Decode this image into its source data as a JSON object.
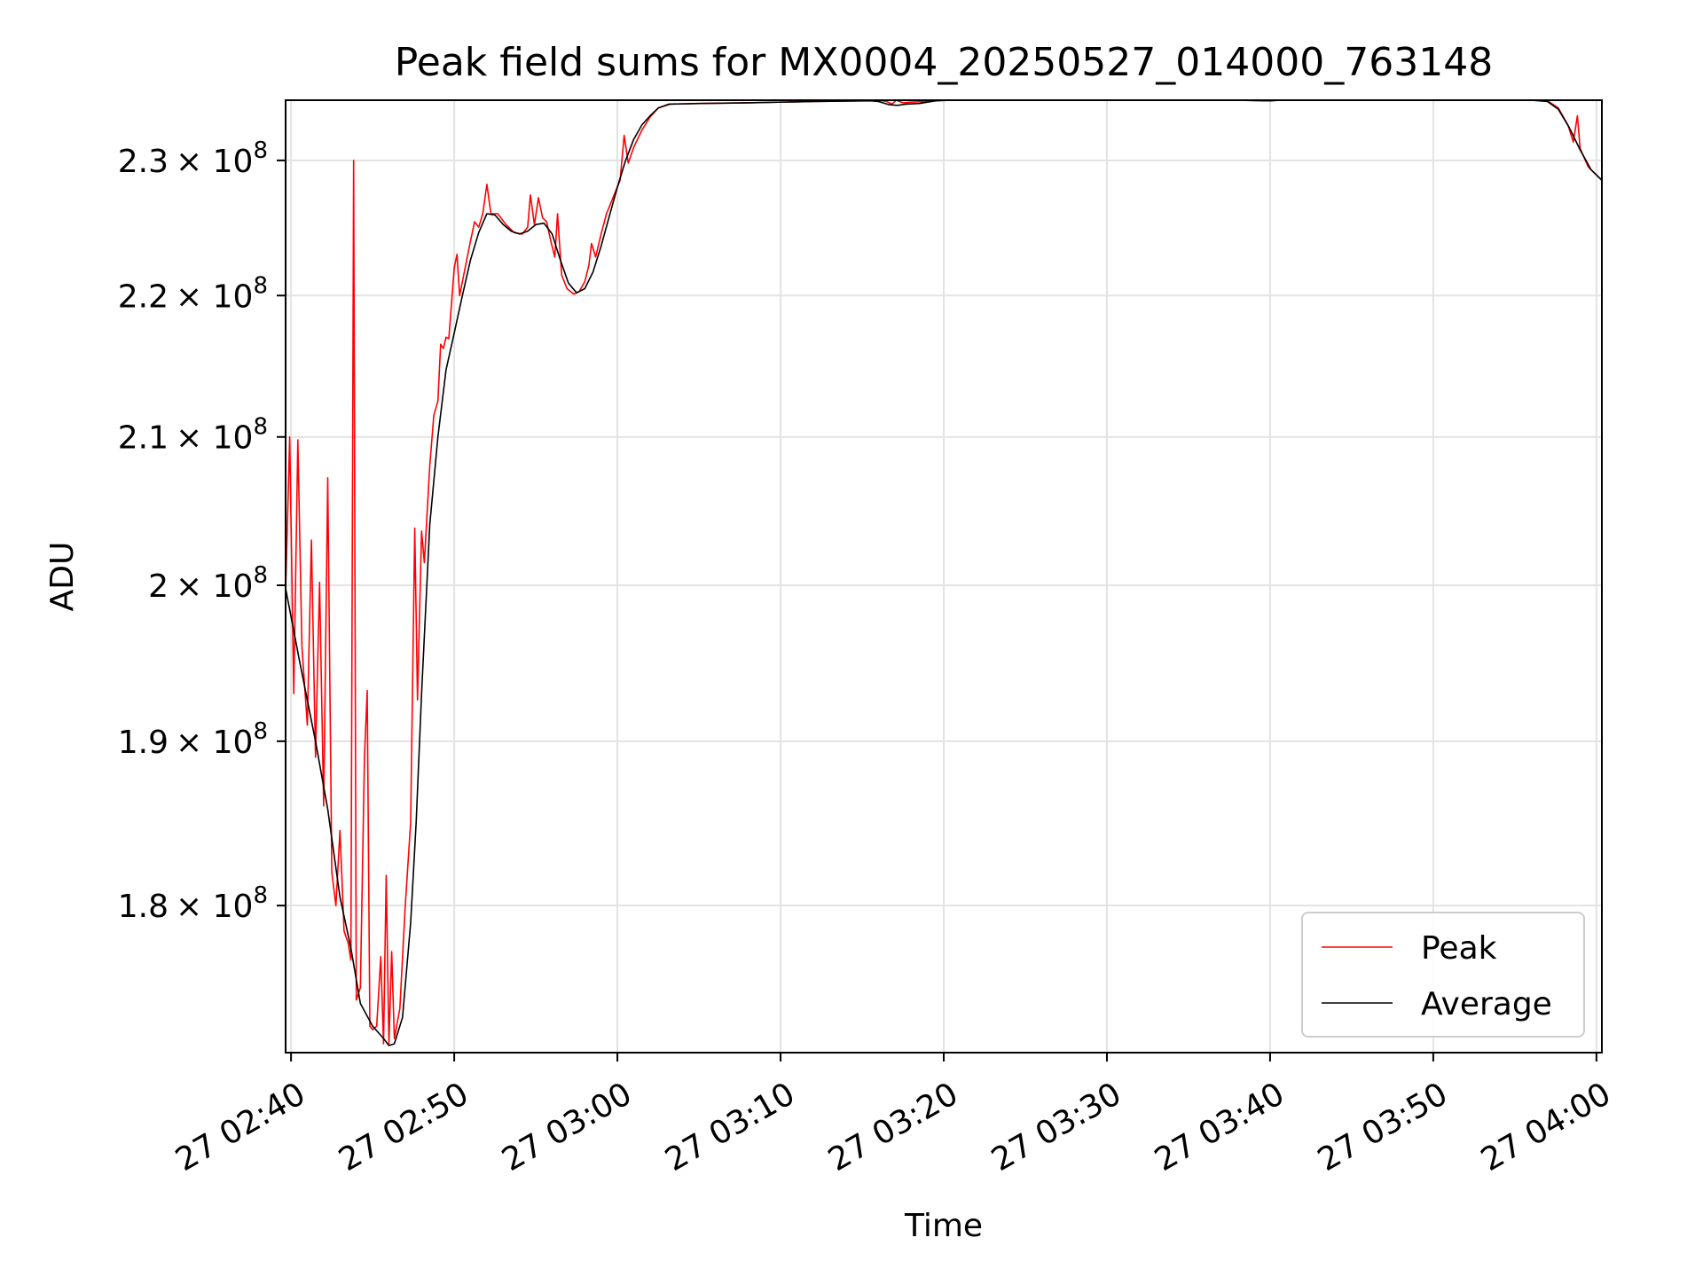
{
  "chart_data": {
    "type": "line",
    "title": "Peak field sums for MX0004_20250527_014000_763148",
    "xlabel": "Time",
    "ylabel": "ADU",
    "y_scale": "log",
    "xlim": [
      "02:39:40",
      "04:00:20"
    ],
    "ylim": [
      171500000,
      234600000
    ],
    "x_ticks": [
      {
        "time": "02:40",
        "label": "27 02:40"
      },
      {
        "time": "02:50",
        "label": "27 02:50"
      },
      {
        "time": "03:00",
        "label": "27 03:00"
      },
      {
        "time": "03:10",
        "label": "27 03:10"
      },
      {
        "time": "03:20",
        "label": "27 03:20"
      },
      {
        "time": "03:30",
        "label": "27 03:30"
      },
      {
        "time": "03:40",
        "label": "27 03:40"
      },
      {
        "time": "03:50",
        "label": "27 03:50"
      },
      {
        "time": "04:00",
        "label": "27 04:00"
      }
    ],
    "y_ticks": [
      {
        "value": 180000000,
        "mantissa": "1.8"
      },
      {
        "value": 190000000,
        "mantissa": "1.9"
      },
      {
        "value": 200000000,
        "mantissa": "2"
      },
      {
        "value": 210000000,
        "mantissa": "2.1"
      },
      {
        "value": 220000000,
        "mantissa": "2.2"
      },
      {
        "value": 230000000,
        "mantissa": "2.3"
      }
    ],
    "y_tick_base": "× 10",
    "y_tick_exponent": "8",
    "grid": true,
    "legend_position": "lower-right",
    "series": [
      {
        "name": "Peak",
        "color": "#ff0000",
        "points": [
          [
            "02:39:40",
            199500000
          ],
          [
            "02:39:55",
            210000000
          ],
          [
            "02:40:10",
            193000000
          ],
          [
            "02:40:25",
            209800000
          ],
          [
            "02:40:40",
            196000000
          ],
          [
            "02:41:00",
            191000000
          ],
          [
            "02:41:15",
            203000000
          ],
          [
            "02:41:30",
            189000000
          ],
          [
            "02:41:45",
            200200000
          ],
          [
            "02:42:00",
            186000000
          ],
          [
            "02:42:15",
            207200000
          ],
          [
            "02:42:30",
            182000000
          ],
          [
            "02:42:45",
            180000000
          ],
          [
            "02:43:00",
            184500000
          ],
          [
            "02:43:15",
            178500000
          ],
          [
            "02:43:30",
            177800000
          ],
          [
            "02:43:40",
            176800000
          ],
          [
            "02:43:50",
            230000000
          ],
          [
            "02:44:00",
            174500000
          ],
          [
            "02:44:15",
            175200000
          ],
          [
            "02:44:30",
            189000000
          ],
          [
            "02:44:40",
            193200000
          ],
          [
            "02:44:50",
            173000000
          ],
          [
            "02:45:00",
            172800000
          ],
          [
            "02:45:15",
            173000000
          ],
          [
            "02:45:30",
            177000000
          ],
          [
            "02:45:40",
            172000000
          ],
          [
            "02:45:50",
            181800000
          ],
          [
            "02:46:00",
            172000000
          ],
          [
            "02:46:10",
            177300000
          ],
          [
            "02:46:20",
            172300000
          ],
          [
            "02:46:40",
            174000000
          ],
          [
            "02:47:00",
            180000000
          ],
          [
            "02:47:20",
            185000000
          ],
          [
            "02:47:35",
            203800000
          ],
          [
            "02:47:45",
            192600000
          ],
          [
            "02:48:00",
            203600000
          ],
          [
            "02:48:10",
            201500000
          ],
          [
            "02:48:30",
            208000000
          ],
          [
            "02:48:45",
            211500000
          ],
          [
            "02:49:00",
            212500000
          ],
          [
            "02:49:10",
            216500000
          ],
          [
            "02:49:20",
            216200000
          ],
          [
            "02:49:30",
            217000000
          ],
          [
            "02:49:40",
            216900000
          ],
          [
            "02:50:00",
            222000000
          ],
          [
            "02:50:10",
            223000000
          ],
          [
            "02:50:20",
            220000000
          ],
          [
            "02:50:45",
            222500000
          ],
          [
            "02:51:00",
            224000000
          ],
          [
            "02:51:15",
            225400000
          ],
          [
            "02:51:30",
            225000000
          ],
          [
            "02:51:45",
            226000000
          ],
          [
            "02:52:00",
            228200000
          ],
          [
            "02:52:15",
            226000000
          ],
          [
            "02:52:40",
            226000000
          ],
          [
            "02:53:10",
            225200000
          ],
          [
            "02:53:40",
            224600000
          ],
          [
            "02:54:10",
            224500000
          ],
          [
            "02:54:30",
            225000000
          ],
          [
            "02:54:40",
            227400000
          ],
          [
            "02:54:55",
            225200000
          ],
          [
            "02:55:10",
            227200000
          ],
          [
            "02:55:25",
            225700000
          ],
          [
            "02:55:40",
            225400000
          ],
          [
            "02:55:55",
            224000000
          ],
          [
            "02:56:10",
            222800000
          ],
          [
            "02:56:20",
            226000000
          ],
          [
            "02:56:35",
            221500000
          ],
          [
            "02:56:55",
            220500000
          ],
          [
            "02:57:20",
            220100000
          ],
          [
            "02:57:40",
            220300000
          ],
          [
            "02:58:00",
            221000000
          ],
          [
            "02:58:15",
            222200000
          ],
          [
            "02:58:25",
            223800000
          ],
          [
            "02:58:40",
            222800000
          ],
          [
            "02:59:00",
            224500000
          ],
          [
            "02:59:20",
            226000000
          ],
          [
            "02:59:40",
            227000000
          ],
          [
            "03:00:10",
            228500000
          ],
          [
            "03:00:25",
            231900000
          ],
          [
            "03:00:40",
            229800000
          ],
          [
            "03:01:00",
            231000000
          ],
          [
            "03:01:30",
            232300000
          ],
          [
            "03:02:00",
            233300000
          ],
          [
            "03:02:30",
            234000000
          ],
          [
            "03:03:15",
            234300000
          ],
          [
            "03:05:00",
            234350000
          ],
          [
            "03:08:00",
            234400000
          ],
          [
            "03:12:00",
            234500000
          ],
          [
            "03:15:00",
            234550000
          ],
          [
            "03:16:00",
            234600000
          ],
          [
            "03:16:30",
            234500000
          ],
          [
            "03:16:50",
            234300000
          ],
          [
            "03:17:05",
            234600000
          ],
          [
            "03:17:30",
            234400000
          ],
          [
            "03:18:00",
            234450000
          ],
          [
            "03:19:00",
            234500000
          ],
          [
            "03:20:00",
            234600000
          ],
          [
            "03:30:00",
            234600000
          ],
          [
            "03:38:00",
            234600000
          ],
          [
            "03:40:00",
            234550000
          ],
          [
            "03:40:30",
            234600000
          ],
          [
            "03:56:00",
            234600000
          ],
          [
            "03:57:00",
            234550000
          ],
          [
            "03:57:40",
            234000000
          ],
          [
            "03:58:15",
            232700000
          ],
          [
            "03:58:35",
            231400000
          ],
          [
            "03:58:50",
            233400000
          ],
          [
            "03:59:00",
            230900000
          ],
          [
            "03:59:30",
            229500000
          ],
          [
            "04:00:00",
            228900000
          ],
          [
            "04:00:20",
            228500000
          ]
        ]
      },
      {
        "name": "Average",
        "color": "#000000",
        "points": [
          [
            "02:39:40",
            199800000
          ],
          [
            "02:40:30",
            195200000
          ],
          [
            "02:41:30",
            190000000
          ],
          [
            "02:42:15",
            185800000
          ],
          [
            "02:43:00",
            180500000
          ],
          [
            "02:43:40",
            177500000
          ],
          [
            "02:44:15",
            174300000
          ],
          [
            "02:45:00",
            173000000
          ],
          [
            "02:45:40",
            172300000
          ],
          [
            "02:46:00",
            171900000
          ],
          [
            "02:46:20",
            172000000
          ],
          [
            "02:46:50",
            173500000
          ],
          [
            "02:47:20",
            179000000
          ],
          [
            "02:47:40",
            185000000
          ],
          [
            "02:48:00",
            193000000
          ],
          [
            "02:48:30",
            204000000
          ],
          [
            "02:49:00",
            210000000
          ],
          [
            "02:49:30",
            214700000
          ],
          [
            "02:50:00",
            217300000
          ],
          [
            "02:50:30",
            220000000
          ],
          [
            "02:51:00",
            222600000
          ],
          [
            "02:51:30",
            224600000
          ],
          [
            "02:52:00",
            226000000
          ],
          [
            "02:52:30",
            225900000
          ],
          [
            "02:53:00",
            225200000
          ],
          [
            "02:53:30",
            224700000
          ],
          [
            "02:54:00",
            224500000
          ],
          [
            "02:54:30",
            224700000
          ],
          [
            "02:55:00",
            225200000
          ],
          [
            "02:55:30",
            225300000
          ],
          [
            "02:56:00",
            224500000
          ],
          [
            "02:56:30",
            222600000
          ],
          [
            "02:57:00",
            220900000
          ],
          [
            "02:57:30",
            220200000
          ],
          [
            "02:58:00",
            220500000
          ],
          [
            "02:58:30",
            221700000
          ],
          [
            "02:59:00",
            223600000
          ],
          [
            "02:59:30",
            225800000
          ],
          [
            "03:00:00",
            228000000
          ],
          [
            "03:00:30",
            230000000
          ],
          [
            "03:01:00",
            231600000
          ],
          [
            "03:01:30",
            232700000
          ],
          [
            "03:02:00",
            233400000
          ],
          [
            "03:02:30",
            234000000
          ],
          [
            "03:03:10",
            234300000
          ],
          [
            "03:05:00",
            234350000
          ],
          [
            "03:08:00",
            234400000
          ],
          [
            "03:12:00",
            234500000
          ],
          [
            "03:15:30",
            234550000
          ],
          [
            "03:16:00",
            234500000
          ],
          [
            "03:16:40",
            234250000
          ],
          [
            "03:17:10",
            234200000
          ],
          [
            "03:17:40",
            234300000
          ],
          [
            "03:18:30",
            234350000
          ],
          [
            "03:19:30",
            234550000
          ],
          [
            "03:20:30",
            234600000
          ],
          [
            "03:38:00",
            234600000
          ],
          [
            "03:40:00",
            234550000
          ],
          [
            "03:40:40",
            234600000
          ],
          [
            "03:56:00",
            234600000
          ],
          [
            "03:57:00",
            234500000
          ],
          [
            "03:57:40",
            233900000
          ],
          [
            "03:58:20",
            232500000
          ],
          [
            "03:59:00",
            230800000
          ],
          [
            "03:59:40",
            229300000
          ],
          [
            "04:00:20",
            228500000
          ]
        ]
      }
    ]
  }
}
